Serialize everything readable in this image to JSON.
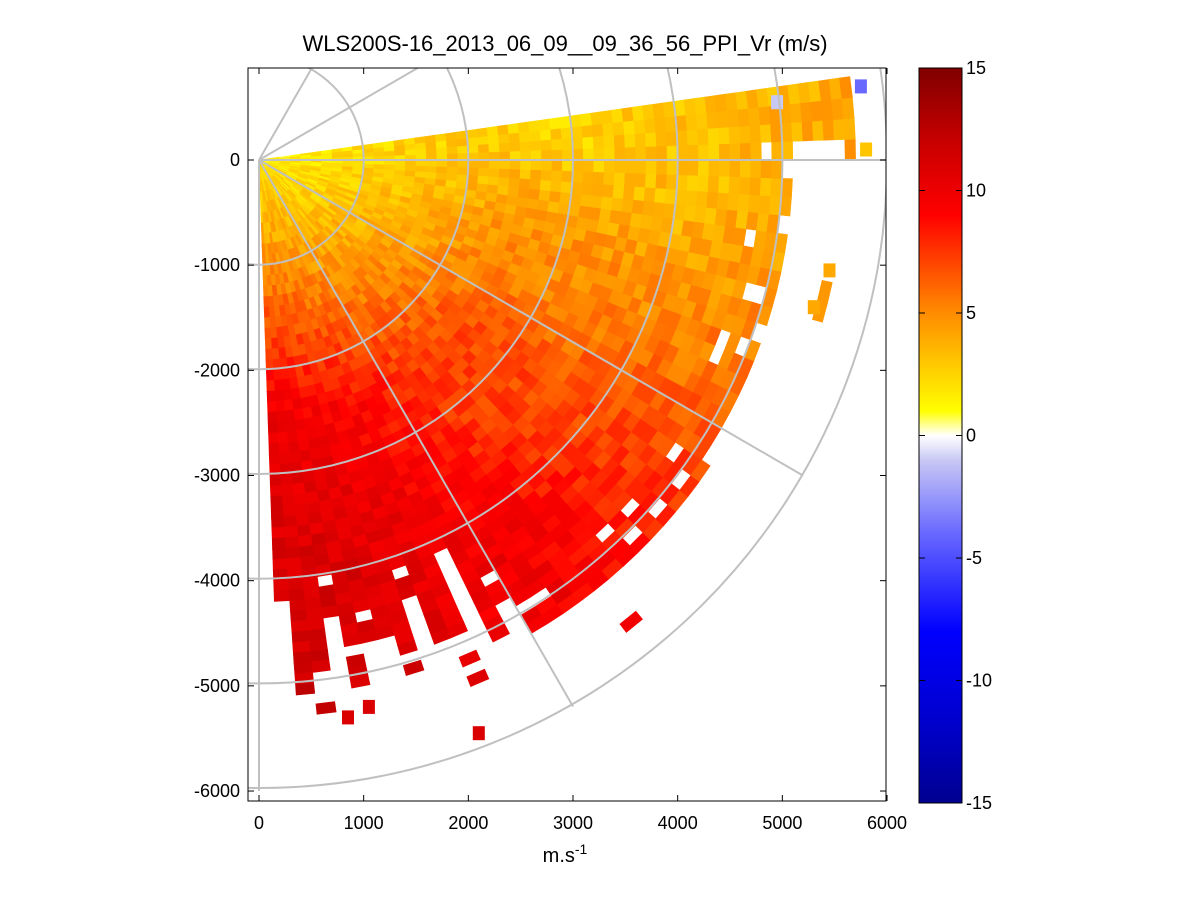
{
  "chart_data": {
    "type": "heatmap",
    "subtype": "ppi-polar-sector",
    "title": "WLS200S-16_2013_06_09__09_36_56_PPI_Vr (m/s)",
    "xlabel": "m.s",
    "xlabel_superscript": "-1",
    "ylabel": "",
    "xlim": [
      -100,
      6000
    ],
    "ylim": [
      -6100,
      900
    ],
    "x_ticks": [
      0,
      1000,
      2000,
      3000,
      4000,
      5000,
      6000
    ],
    "x_tick_labels": [
      "0",
      "1000",
      "2000",
      "3000",
      "4000",
      "5000",
      "6000"
    ],
    "y_ticks": [
      0,
      -1000,
      -2000,
      -3000,
      -4000,
      -5000,
      -6000
    ],
    "y_tick_labels": [
      "0",
      "-1000",
      "-2000",
      "-3000",
      "-4000",
      "-5000",
      "-6000"
    ],
    "grid": "polar",
    "range_rings": [
      1000,
      2000,
      3000,
      4000,
      5000,
      6000
    ],
    "radial_angles_deg": [
      -90,
      -60,
      -30,
      0,
      30,
      60
    ],
    "sector": {
      "angle_start_deg": -88,
      "angle_end_deg": 8,
      "min_range": 0,
      "max_range": 5300,
      "range_gate": 100,
      "azimuth_step_deg": 2
    },
    "velocity_field": {
      "description": "Radial velocity increases with range and toward the south; near-zero (white/yellow) close to the origin and along the northern edge, 10-13 m/s (red) in the far south sector",
      "anchor_points": [
        {
          "angle_deg": 5,
          "range": 3000,
          "vr": 2
        },
        {
          "angle_deg": 0,
          "range": 4000,
          "vr": 3
        },
        {
          "angle_deg": -20,
          "range": 3000,
          "vr": 5
        },
        {
          "angle_deg": -45,
          "range": 3000,
          "vr": 7
        },
        {
          "angle_deg": -60,
          "range": 4500,
          "vr": 10
        },
        {
          "angle_deg": -80,
          "range": 4500,
          "vr": 11.5
        },
        {
          "angle_deg": -85,
          "range": 5000,
          "vr": 12
        }
      ]
    },
    "isolated_cells": [
      {
        "x": 5750,
        "y": 700,
        "vr": -4
      },
      {
        "x": 4950,
        "y": 550,
        "vr": -1
      },
      {
        "x": 5800,
        "y": 100,
        "vr": 3
      },
      {
        "x": 5450,
        "y": -1050,
        "vr": 4
      },
      {
        "x": 5300,
        "y": -1400,
        "vr": 4
      },
      {
        "x": 2100,
        "y": -5450,
        "vr": 11
      },
      {
        "x": 850,
        "y": -5300,
        "vr": 11
      },
      {
        "x": 1050,
        "y": -5200,
        "vr": 11
      }
    ],
    "colorbar": {
      "min": -15,
      "max": 15,
      "ticks": [
        15,
        10,
        5,
        0,
        -5,
        -10,
        -15
      ],
      "tick_labels": [
        "15",
        "10",
        "5",
        "0",
        "-5",
        "-10",
        "-15"
      ],
      "colors": {
        "min": "#00008f",
        "blue_dark": "#0000c8",
        "blue": "#0000ff",
        "blue_mid": "#6868ff",
        "blue_light": "#c8c8f5",
        "zero": "#ffffff",
        "yellow": "#ffff00",
        "orange": "#ff8c00",
        "red": "#ff0000",
        "red_dark": "#c80000",
        "max": "#800000"
      }
    },
    "grid_color": "#c0c0c0"
  }
}
